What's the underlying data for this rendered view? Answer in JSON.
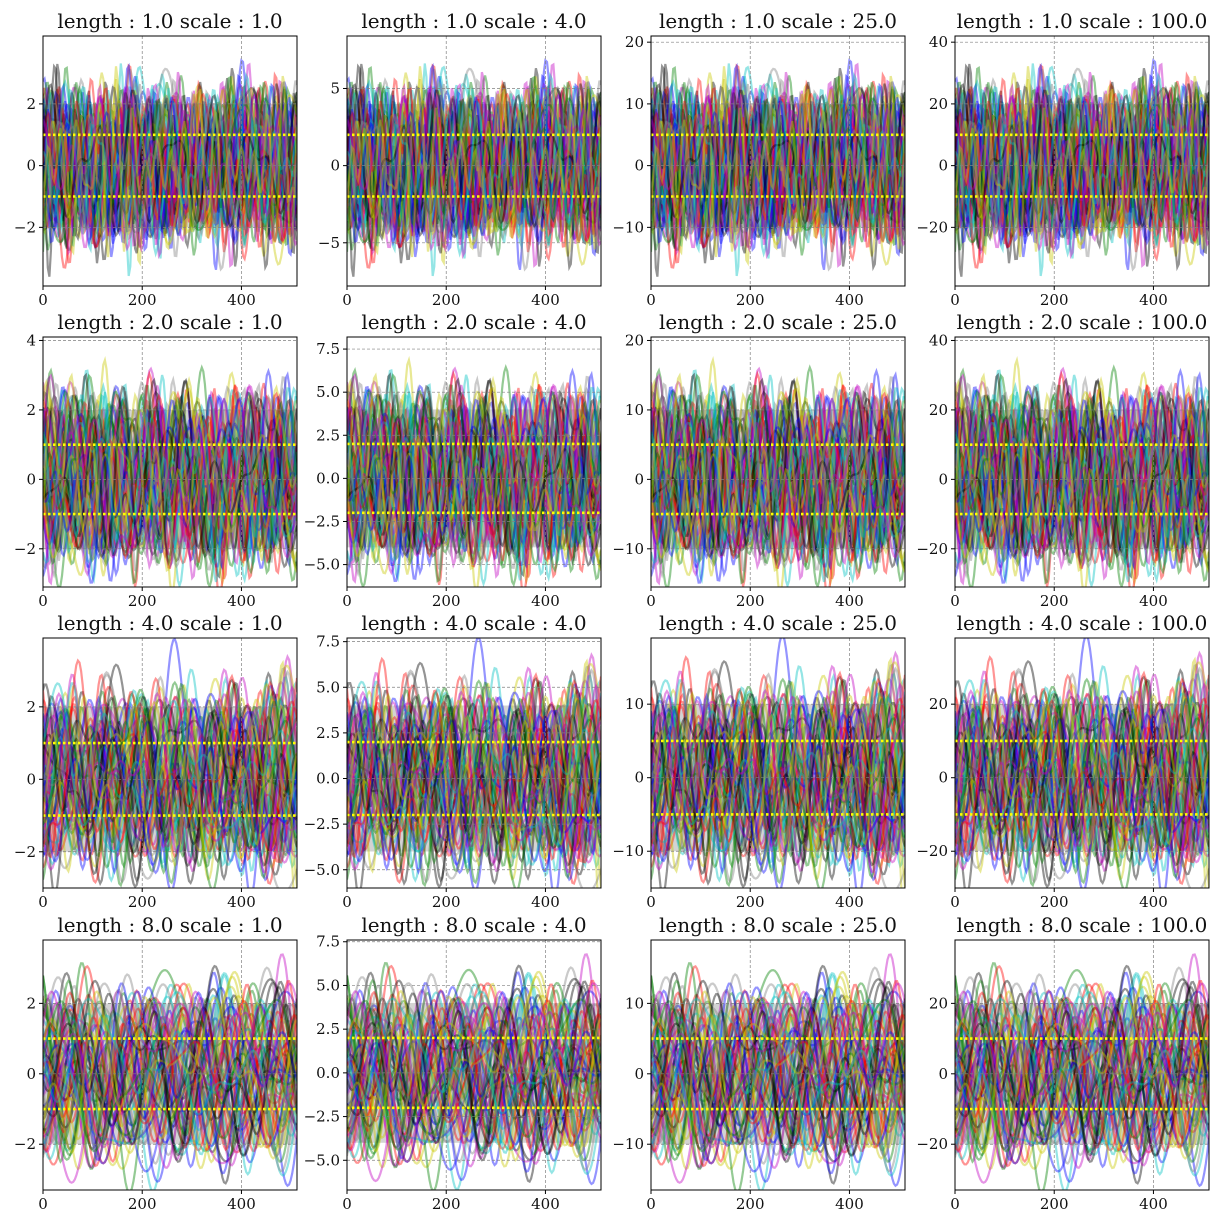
{
  "figure": {
    "rows": 4,
    "cols": 4
  },
  "style": {
    "series_colors": [
      "#ff0000",
      "#0000ff",
      "#008000",
      "#000000",
      "#00c0c0",
      "#c000c0",
      "#c8c800",
      "#808080"
    ],
    "band_color": "#d3d3d3",
    "mean_line_color": "#ffff00",
    "grid_color": "#808080"
  },
  "chart_data": [
    {
      "type": "line",
      "title": "length : 1.0 scale : 1.0",
      "xlim": [
        0,
        512
      ],
      "ylim": [
        -3.9,
        4.2
      ],
      "xticks": [
        0,
        200,
        400
      ],
      "xtick_labels": [
        "0",
        "200",
        "400"
      ],
      "yticks": [
        -2,
        0,
        2
      ],
      "ytick_labels": [
        "−2",
        "0",
        "2"
      ],
      "band": [
        -2,
        2
      ],
      "mean_lines": [
        -1,
        1
      ],
      "grid": true,
      "length": 1.0,
      "scale": 1.0
    },
    {
      "type": "line",
      "title": "length : 1.0 scale : 4.0",
      "xlim": [
        0,
        512
      ],
      "ylim": [
        -7.8,
        8.4
      ],
      "xticks": [
        0,
        200,
        400
      ],
      "xtick_labels": [
        "0",
        "200",
        "400"
      ],
      "yticks": [
        -5,
        0,
        5
      ],
      "ytick_labels": [
        "−5",
        "0",
        "5"
      ],
      "band": [
        -4,
        4
      ],
      "mean_lines": [
        -2,
        2
      ],
      "grid": true,
      "length": 1.0,
      "scale": 4.0
    },
    {
      "type": "line",
      "title": "length : 1.0 scale : 25.0",
      "xlim": [
        0,
        512
      ],
      "ylim": [
        -19.5,
        21
      ],
      "xticks": [
        0,
        200,
        400
      ],
      "xtick_labels": [
        "0",
        "200",
        "400"
      ],
      "yticks": [
        -10,
        0,
        10,
        20
      ],
      "ytick_labels": [
        "−10",
        "0",
        "10",
        "20"
      ],
      "band": [
        -10,
        10
      ],
      "mean_lines": [
        -5,
        5
      ],
      "grid": true,
      "length": 1.0,
      "scale": 25.0
    },
    {
      "type": "line",
      "title": "length : 1.0 scale : 100.0",
      "xlim": [
        0,
        512
      ],
      "ylim": [
        -39,
        42
      ],
      "xticks": [
        0,
        200,
        400
      ],
      "xtick_labels": [
        "0",
        "200",
        "400"
      ],
      "yticks": [
        -20,
        0,
        20,
        40
      ],
      "ytick_labels": [
        "−20",
        "0",
        "20",
        "40"
      ],
      "band": [
        -20,
        20
      ],
      "mean_lines": [
        -10,
        10
      ],
      "grid": true,
      "length": 1.0,
      "scale": 100.0
    },
    {
      "type": "line",
      "title": "length : 2.0 scale : 1.0",
      "xlim": [
        0,
        512
      ],
      "ylim": [
        -3.1,
        4.1
      ],
      "xticks": [
        0,
        200,
        400
      ],
      "xtick_labels": [
        "0",
        "200",
        "400"
      ],
      "yticks": [
        -2,
        0,
        2,
        4
      ],
      "ytick_labels": [
        "−2",
        "0",
        "2",
        "4"
      ],
      "band": [
        -2,
        2
      ],
      "mean_lines": [
        -1,
        1
      ],
      "grid": true,
      "length": 2.0,
      "scale": 1.0
    },
    {
      "type": "line",
      "title": "length : 2.0 scale : 4.0",
      "xlim": [
        0,
        512
      ],
      "ylim": [
        -6.3,
        8.2
      ],
      "xticks": [
        0,
        200,
        400
      ],
      "xtick_labels": [
        "0",
        "200",
        "400"
      ],
      "yticks": [
        -5,
        -2.5,
        0,
        2.5,
        5,
        7.5
      ],
      "ytick_labels": [
        "−5.0",
        "−2.5",
        "0.0",
        "2.5",
        "5.0",
        "7.5"
      ],
      "band": [
        -4,
        4
      ],
      "mean_lines": [
        -2,
        2
      ],
      "grid": true,
      "length": 2.0,
      "scale": 4.0
    },
    {
      "type": "line",
      "title": "length : 2.0 scale : 25.0",
      "xlim": [
        0,
        512
      ],
      "ylim": [
        -15.5,
        20.5
      ],
      "xticks": [
        0,
        200,
        400
      ],
      "xtick_labels": [
        "0",
        "200",
        "400"
      ],
      "yticks": [
        -10,
        0,
        10,
        20
      ],
      "ytick_labels": [
        "−10",
        "0",
        "10",
        "20"
      ],
      "band": [
        -10,
        10
      ],
      "mean_lines": [
        -5,
        5
      ],
      "grid": true,
      "length": 2.0,
      "scale": 25.0
    },
    {
      "type": "line",
      "title": "length : 2.0 scale : 100.0",
      "xlim": [
        0,
        512
      ],
      "ylim": [
        -31,
        41
      ],
      "xticks": [
        0,
        200,
        400
      ],
      "xtick_labels": [
        "0",
        "200",
        "400"
      ],
      "yticks": [
        -20,
        0,
        20,
        40
      ],
      "ytick_labels": [
        "−20",
        "0",
        "20",
        "40"
      ],
      "band": [
        -20,
        20
      ],
      "mean_lines": [
        -10,
        10
      ],
      "grid": true,
      "length": 2.0,
      "scale": 100.0
    },
    {
      "type": "line",
      "title": "length : 4.0 scale : 1.0",
      "xlim": [
        0,
        512
      ],
      "ylim": [
        -3.0,
        3.9
      ],
      "xticks": [
        0,
        200,
        400
      ],
      "xtick_labels": [
        "0",
        "200",
        "400"
      ],
      "yticks": [
        -2,
        0,
        2
      ],
      "ytick_labels": [
        "−2",
        "0",
        "2"
      ],
      "band": [
        -2,
        2
      ],
      "mean_lines": [
        -1,
        1
      ],
      "grid": true,
      "length": 4.0,
      "scale": 1.0
    },
    {
      "type": "line",
      "title": "length : 4.0 scale : 4.0",
      "xlim": [
        0,
        512
      ],
      "ylim": [
        -6.0,
        7.7
      ],
      "xticks": [
        0,
        200,
        400
      ],
      "xtick_labels": [
        "0",
        "200",
        "400"
      ],
      "yticks": [
        -5,
        -2.5,
        0,
        2.5,
        5,
        7.5
      ],
      "ytick_labels": [
        "−5.0",
        "−2.5",
        "0.0",
        "2.5",
        "5.0",
        "7.5"
      ],
      "band": [
        -4,
        4
      ],
      "mean_lines": [
        -2,
        2
      ],
      "grid": true,
      "length": 4.0,
      "scale": 4.0
    },
    {
      "type": "line",
      "title": "length : 4.0 scale : 25.0",
      "xlim": [
        0,
        512
      ],
      "ylim": [
        -15,
        19
      ],
      "xticks": [
        0,
        200,
        400
      ],
      "xtick_labels": [
        "0",
        "200",
        "400"
      ],
      "yticks": [
        -10,
        0,
        10
      ],
      "ytick_labels": [
        "−10",
        "0",
        "10"
      ],
      "band": [
        -10,
        10
      ],
      "mean_lines": [
        -5,
        5
      ],
      "grid": true,
      "length": 4.0,
      "scale": 25.0
    },
    {
      "type": "line",
      "title": "length : 4.0 scale : 100.0",
      "xlim": [
        0,
        512
      ],
      "ylim": [
        -30,
        38
      ],
      "xticks": [
        0,
        200,
        400
      ],
      "xtick_labels": [
        "0",
        "200",
        "400"
      ],
      "yticks": [
        -20,
        0,
        20
      ],
      "ytick_labels": [
        "−20",
        "0",
        "20"
      ],
      "band": [
        -20,
        20
      ],
      "mean_lines": [
        -10,
        10
      ],
      "grid": true,
      "length": 4.0,
      "scale": 100.0
    },
    {
      "type": "line",
      "title": "length : 8.0 scale : 1.0",
      "xlim": [
        0,
        512
      ],
      "ylim": [
        -3.3,
        3.8
      ],
      "xticks": [
        0,
        200,
        400
      ],
      "xtick_labels": [
        "0",
        "200",
        "400"
      ],
      "yticks": [
        -2,
        0,
        2
      ],
      "ytick_labels": [
        "−2",
        "0",
        "2"
      ],
      "band": [
        -2,
        2
      ],
      "mean_lines": [
        -1,
        1
      ],
      "grid": true,
      "length": 8.0,
      "scale": 1.0
    },
    {
      "type": "line",
      "title": "length : 8.0 scale : 4.0",
      "xlim": [
        0,
        512
      ],
      "ylim": [
        -6.7,
        7.6
      ],
      "xticks": [
        0,
        200,
        400
      ],
      "xtick_labels": [
        "0",
        "200",
        "400"
      ],
      "yticks": [
        -5,
        -2.5,
        0,
        2.5,
        5,
        7.5
      ],
      "ytick_labels": [
        "−5.0",
        "−2.5",
        "0.0",
        "2.5",
        "5.0",
        "7.5"
      ],
      "band": [
        -4,
        4
      ],
      "mean_lines": [
        -2,
        2
      ],
      "grid": true,
      "length": 8.0,
      "scale": 4.0
    },
    {
      "type": "line",
      "title": "length : 8.0 scale : 25.0",
      "xlim": [
        0,
        512
      ],
      "ylim": [
        -16.5,
        19
      ],
      "xticks": [
        0,
        200,
        400
      ],
      "xtick_labels": [
        "0",
        "200",
        "400"
      ],
      "yticks": [
        -10,
        0,
        10
      ],
      "ytick_labels": [
        "−10",
        "0",
        "10"
      ],
      "band": [
        -10,
        10
      ],
      "mean_lines": [
        -5,
        5
      ],
      "grid": true,
      "length": 8.0,
      "scale": 25.0
    },
    {
      "type": "line",
      "title": "length : 8.0 scale : 100.0",
      "xlim": [
        0,
        512
      ],
      "ylim": [
        -33,
        38
      ],
      "xticks": [
        0,
        200,
        400
      ],
      "xtick_labels": [
        "0",
        "200",
        "400"
      ],
      "yticks": [
        -20,
        0,
        20
      ],
      "ytick_labels": [
        "−20",
        "0",
        "20"
      ],
      "band": [
        -20,
        20
      ],
      "mean_lines": [
        -10,
        10
      ],
      "grid": true,
      "length": 8.0,
      "scale": 100.0
    }
  ]
}
